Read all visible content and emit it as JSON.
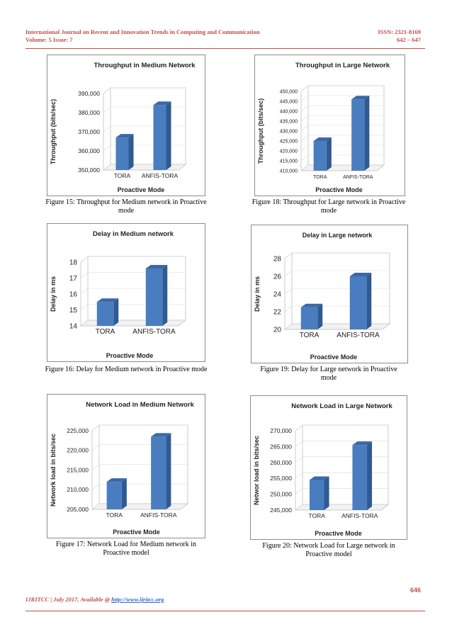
{
  "header": {
    "journal": "International Journal on Recent and Innovation Trends in Computing and Communication",
    "volume": "Volume: 5 Issue: 7",
    "issn": "ISSN: 2321-8169",
    "pages": "642 – 647"
  },
  "footer": {
    "text": "IJRITCC | July 2017, Available @ ",
    "link": "http://www.ijritcc.org",
    "page_number": "646"
  },
  "captions": {
    "fig15": "Figure 15: Throughput for Medium network in Proactive mode",
    "fig16": "Figure 16: Delay for Medium network in Proactive mode",
    "fig17": "Figure 17: Network Load for Medium network in Proactive model",
    "fig18": "Figure 18: Throughput for Large network in Proactive mode",
    "fig19": "Figure 19: Delay for Large network in Proactive mode",
    "fig20": "Figure 20: Network Load for Large network in Proactive model"
  },
  "chart_data": [
    {
      "id": "fig15",
      "type": "bar",
      "title": "Throughput in Medium Network",
      "xlabel": "Proactive Mode",
      "ylabel": "Throughput (bits/sec)",
      "categories": [
        "TORA",
        "ANFIS-TORA"
      ],
      "values": [
        367000,
        384000
      ],
      "ylim": [
        350000,
        390000
      ],
      "yticks": [
        "350,000",
        "360,000",
        "370,000",
        "380,000",
        "390,000"
      ],
      "color": "#4a7dbf"
    },
    {
      "id": "fig18",
      "type": "bar",
      "title": "Throughput in Large Network",
      "xlabel": "Proactive Mode",
      "ylabel": "Throughput (bits/sec)",
      "categories": [
        "TORA",
        "ANFIS-TORA"
      ],
      "values": [
        425000,
        446000
      ],
      "ylim": [
        410000,
        450000
      ],
      "yticks": [
        "410,000",
        "415,000",
        "420,000",
        "425,000",
        "430,000",
        "435,000",
        "440,000",
        "445,000",
        "450,000"
      ],
      "color": "#4a7dbf"
    },
    {
      "id": "fig16",
      "type": "bar",
      "title": "Delay in Medium network",
      "xlabel": "Proactive Mode",
      "ylabel": "Delay in ms",
      "categories": [
        "TORA",
        "ANFIS-TORA"
      ],
      "values": [
        15.5,
        17.6
      ],
      "ylim": [
        14,
        18
      ],
      "yticks": [
        "14",
        "15",
        "16",
        "17",
        "18"
      ],
      "color": "#4a7dbf"
    },
    {
      "id": "fig19",
      "type": "bar",
      "title": "Delay in Large network",
      "xlabel": "Proactive Mode",
      "ylabel": "Delay in ms",
      "categories": [
        "TORA",
        "ANFIS-TORA"
      ],
      "values": [
        22.5,
        26
      ],
      "ylim": [
        20,
        28
      ],
      "yticks": [
        "20",
        "22",
        "24",
        "26",
        "28"
      ],
      "color": "#4a7dbf"
    },
    {
      "id": "fig17",
      "type": "bar",
      "title": "Network Load in Medium  Network",
      "xlabel": "Proactive Mode",
      "ylabel": "Network load in bits/sec",
      "categories": [
        "TORA",
        "ANFIS-TORA"
      ],
      "values": [
        212000,
        223500
      ],
      "ylim": [
        205000,
        225000
      ],
      "yticks": [
        "205,000",
        "210,000",
        "215,000",
        "220,000",
        "225,000"
      ],
      "color": "#4a7dbf"
    },
    {
      "id": "fig20",
      "type": "bar",
      "title": "Network Load in Large  Network",
      "xlabel": "Proactive Mode",
      "ylabel": "Networ load in bits/sec",
      "categories": [
        "TORA",
        "ANFIS-TORA"
      ],
      "values": [
        254500,
        265500
      ],
      "ylim": [
        245000,
        270000
      ],
      "yticks": [
        "245,000",
        "250,000",
        "255,000",
        "260,000",
        "265,000",
        "270,000"
      ],
      "color": "#4a7dbf"
    }
  ]
}
